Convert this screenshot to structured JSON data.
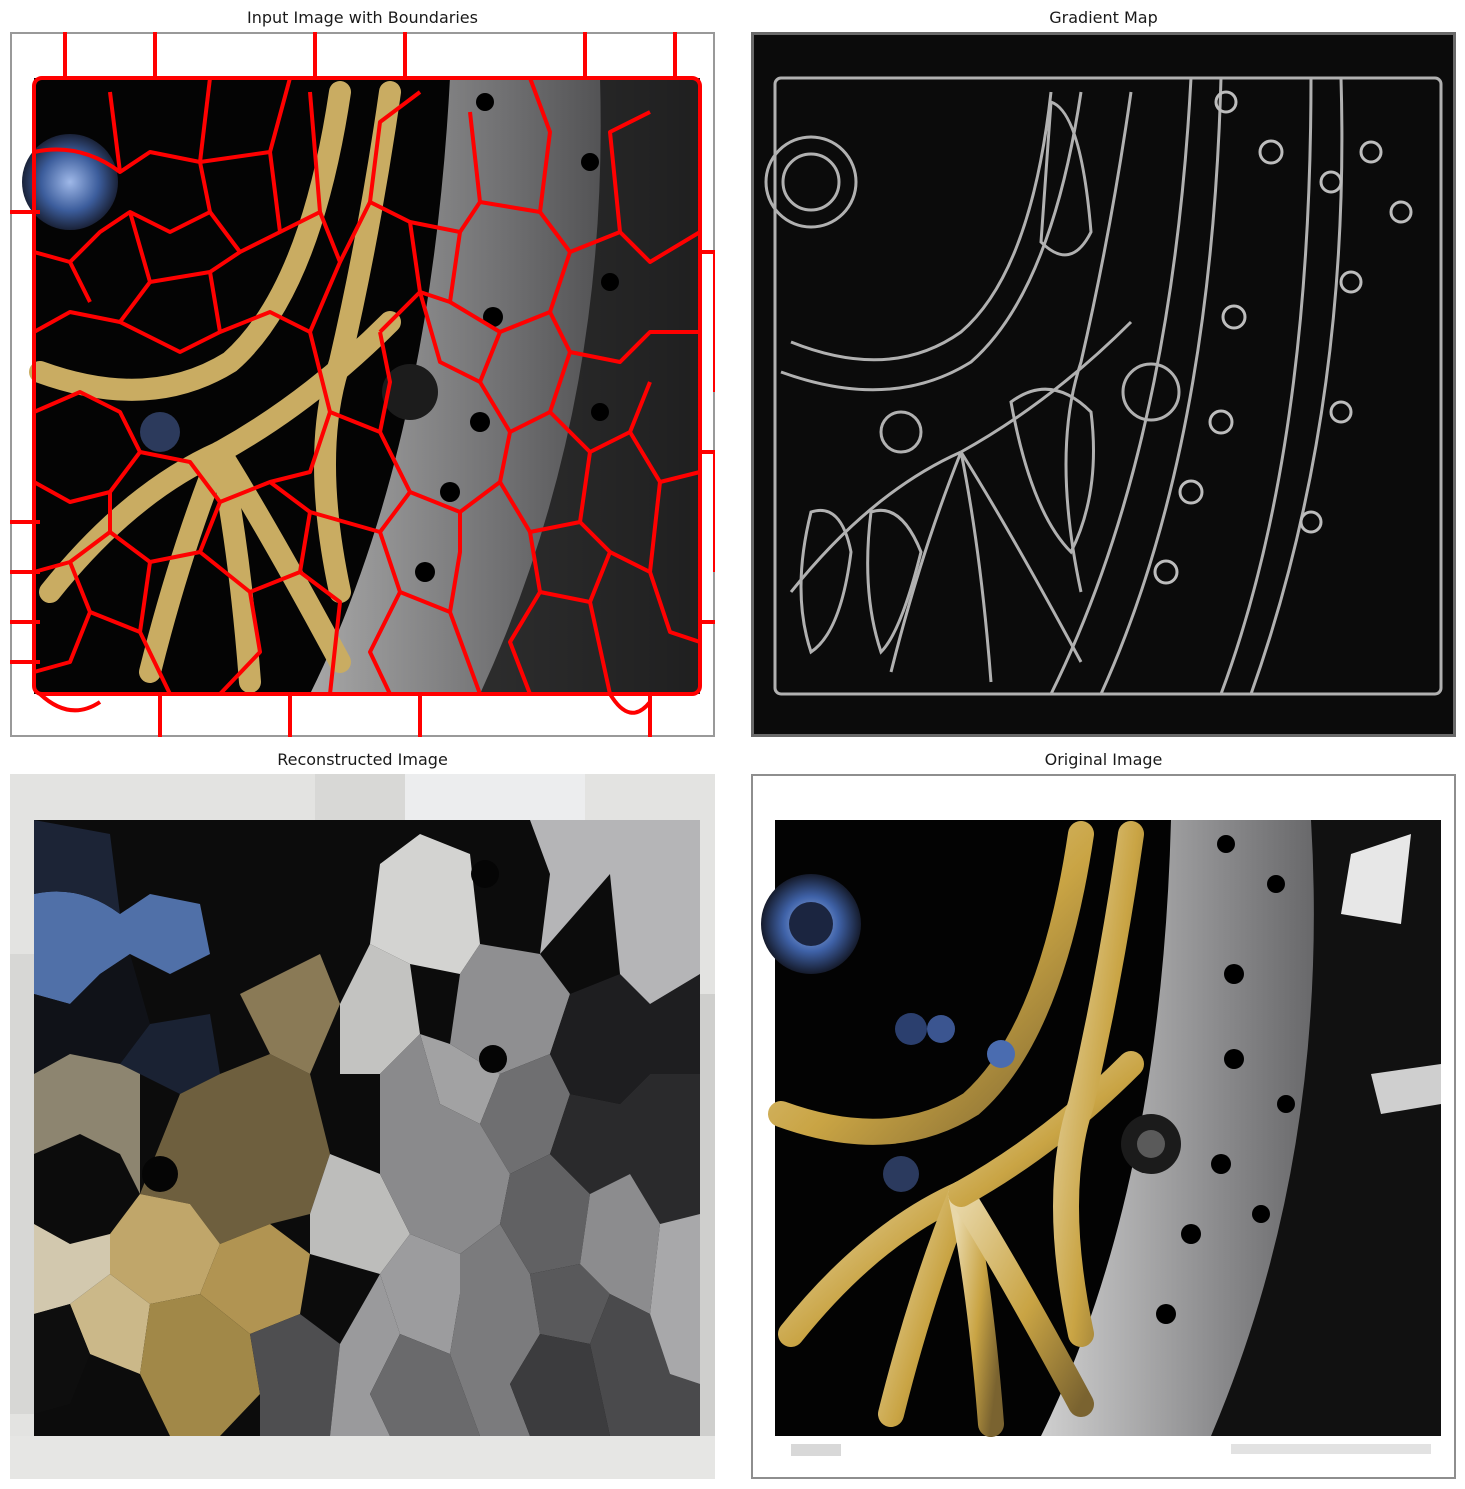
{
  "figure": {
    "panels": [
      {
        "id": "boundaries",
        "title": "Input Image with Boundaries"
      },
      {
        "id": "gradient",
        "title": "Gradient Map"
      },
      {
        "id": "reconstructed",
        "title": "Reconstructed Image"
      },
      {
        "id": "original",
        "title": "Original Image"
      }
    ]
  },
  "colors": {
    "boundary": "#ff0000",
    "gold": "#c8a24a",
    "steel": "#8d8d8f",
    "black": "#050505",
    "hub_blue": "#4f78c0"
  }
}
